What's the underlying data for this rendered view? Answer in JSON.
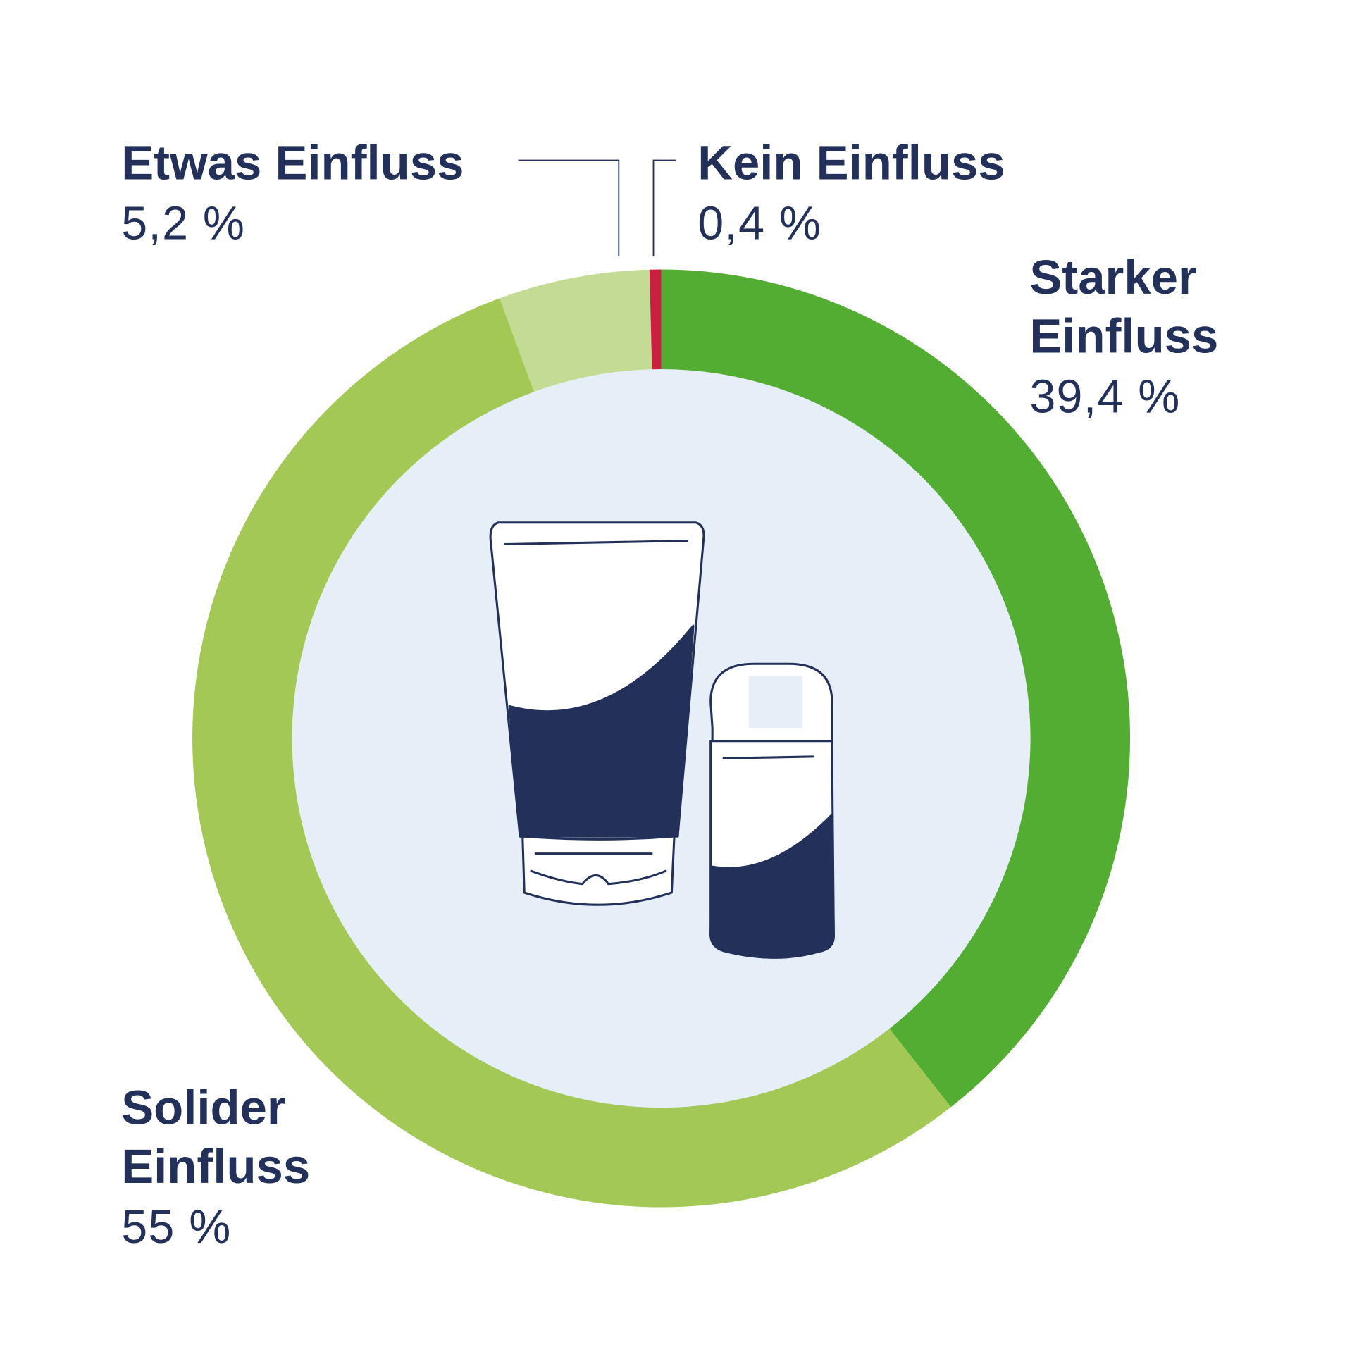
{
  "chart_data": {
    "type": "donut",
    "categories": [
      "Starker Einfluss",
      "Solider Einfluss",
      "Etwas Einfluss",
      "Kein Einfluss"
    ],
    "values": [
      39.4,
      55,
      5.2,
      0.4
    ],
    "value_labels": [
      "39,4 %",
      "55 %",
      "5,2 %",
      "0,4 %"
    ],
    "colors": [
      "#53ad33",
      "#a3c855",
      "#c4db93",
      "#c8203e"
    ]
  }
}
